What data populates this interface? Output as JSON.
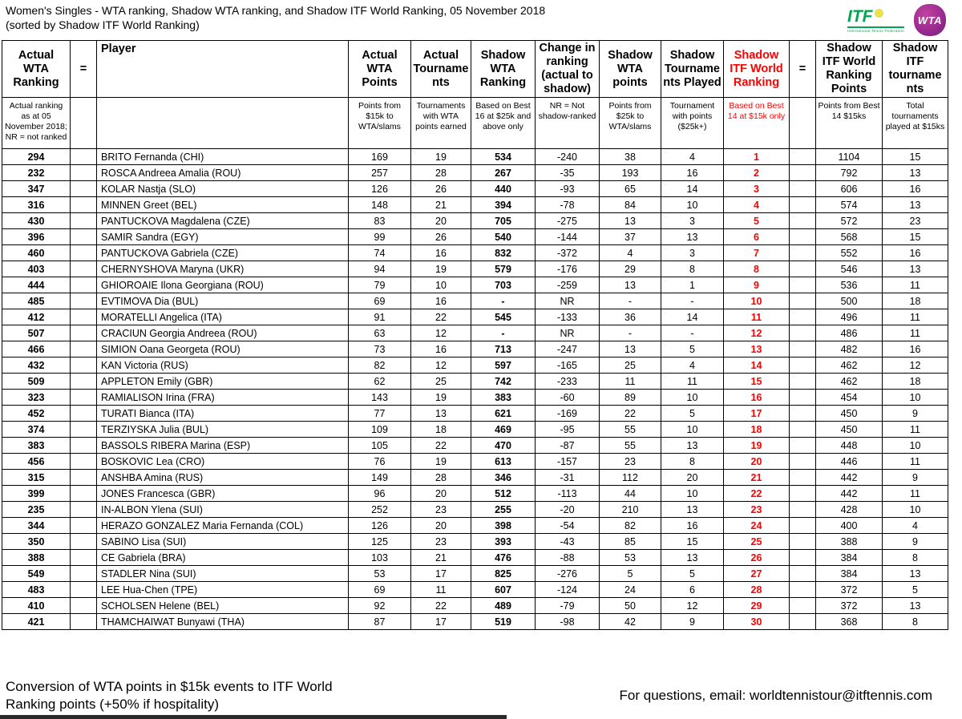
{
  "title": "Women's Singles - WTA ranking, Shadow WTA ranking, and Shadow ITF World Ranking, 05 November 2018",
  "subtitle": "(sorted by Shadow ITF World Ranking)",
  "logos": {
    "itf_label": "ITF",
    "itf_tagline": "International Tennis Federation",
    "wta_label": "WTA",
    "itf_green": "#00a651",
    "wta_purple": "#9c2b92"
  },
  "colors": {
    "accent_red": "#ff0000",
    "border": "#000000",
    "background": "#ffffff"
  },
  "columns": [
    {
      "key": "actual-wta-ranking",
      "label": "Actual\nWTA\nRanking",
      "sub": "Actual ranking as at 05 November 2018; NR = not ranked",
      "red": false,
      "bold_values": true
    },
    {
      "key": "equals-1",
      "label": "=",
      "sub": "",
      "red": false,
      "bold_values": false
    },
    {
      "key": "player",
      "label": "Player",
      "sub": "",
      "red": false,
      "bold_values": false
    },
    {
      "key": "actual-wta-points",
      "label": "Actual\nWTA\nPoints",
      "sub": "Points from $15k to WTA/slams",
      "red": false,
      "bold_values": false
    },
    {
      "key": "actual-tournaments",
      "label": "Actual\nTourname\nnts",
      "sub": "Tournaments with WTA points earned",
      "red": false,
      "bold_values": false
    },
    {
      "key": "shadow-wta-ranking",
      "label": "Shadow\nWTA\nRanking",
      "sub": "Based on Best 16 at $25k and above only",
      "red": false,
      "bold_values": true
    },
    {
      "key": "change-in-ranking",
      "label": "Change in\nranking\n(actual to\nshadow)",
      "sub": "NR = Not shadow-ranked",
      "red": false,
      "bold_values": false
    },
    {
      "key": "shadow-wta-points",
      "label": "Shadow\nWTA\npoints",
      "sub": "Points from $25k to WTA/slams",
      "red": false,
      "bold_values": false
    },
    {
      "key": "shadow-tournaments-played",
      "label": "Shadow\nTourname\nnts Played",
      "sub": "Tournament with points ($25k+)",
      "red": false,
      "bold_values": false
    },
    {
      "key": "shadow-itf-world-ranking",
      "label": "Shadow\nITF World\nRanking",
      "sub": "Based on Best 14 at $15k only",
      "red": true,
      "bold_values": true
    },
    {
      "key": "equals-2",
      "label": "=",
      "sub": "",
      "red": false,
      "bold_values": false
    },
    {
      "key": "shadow-itf-world-ranking-points",
      "label": "Shadow\nITF World\nRanking\nPoints",
      "sub": "Points from Best 14 $15ks",
      "red": false,
      "bold_values": false
    },
    {
      "key": "shadow-itf-tournaments",
      "label": "Shadow\nITF\ntourname\nnts",
      "sub": "Total tournaments played at $15ks",
      "red": false,
      "bold_values": false
    }
  ],
  "rows": [
    [
      "294",
      "",
      "BRITO Fernanda (CHI)",
      "169",
      "19",
      "534",
      "-240",
      "38",
      "4",
      "1",
      "",
      "1104",
      "15"
    ],
    [
      "232",
      "",
      "ROSCA Andreea Amalia (ROU)",
      "257",
      "28",
      "267",
      "-35",
      "193",
      "16",
      "2",
      "",
      "792",
      "13"
    ],
    [
      "347",
      "",
      "KOLAR Nastja (SLO)",
      "126",
      "26",
      "440",
      "-93",
      "65",
      "14",
      "3",
      "",
      "606",
      "16"
    ],
    [
      "316",
      "",
      "MINNEN Greet (BEL)",
      "148",
      "21",
      "394",
      "-78",
      "84",
      "10",
      "4",
      "",
      "574",
      "13"
    ],
    [
      "430",
      "",
      "PANTUCKOVA Magdalena (CZE)",
      "83",
      "20",
      "705",
      "-275",
      "13",
      "3",
      "5",
      "",
      "572",
      "23"
    ],
    [
      "396",
      "",
      "SAMIR Sandra (EGY)",
      "99",
      "26",
      "540",
      "-144",
      "37",
      "13",
      "6",
      "",
      "568",
      "15"
    ],
    [
      "460",
      "",
      "PANTUCKOVA Gabriela (CZE)",
      "74",
      "16",
      "832",
      "-372",
      "4",
      "3",
      "7",
      "",
      "552",
      "16"
    ],
    [
      "403",
      "",
      "CHERNYSHOVA Maryna (UKR)",
      "94",
      "19",
      "579",
      "-176",
      "29",
      "8",
      "8",
      "",
      "546",
      "13"
    ],
    [
      "444",
      "",
      "GHIOROAIE Ilona Georgiana (ROU)",
      "79",
      "10",
      "703",
      "-259",
      "13",
      "1",
      "9",
      "",
      "536",
      "11"
    ],
    [
      "485",
      "",
      "EVTIMOVA Dia (BUL)",
      "69",
      "16",
      "-",
      "NR",
      "-",
      "-",
      "10",
      "",
      "500",
      "18"
    ],
    [
      "412",
      "",
      "MORATELLI Angelica (ITA)",
      "91",
      "22",
      "545",
      "-133",
      "36",
      "14",
      "11",
      "",
      "496",
      "11"
    ],
    [
      "507",
      "",
      "CRACIUN Georgia Andreea (ROU)",
      "63",
      "12",
      "-",
      "NR",
      "-",
      "-",
      "12",
      "",
      "486",
      "11"
    ],
    [
      "466",
      "",
      "SIMION Oana Georgeta (ROU)",
      "73",
      "16",
      "713",
      "-247",
      "13",
      "5",
      "13",
      "",
      "482",
      "16"
    ],
    [
      "432",
      "",
      "KAN Victoria (RUS)",
      "82",
      "12",
      "597",
      "-165",
      "25",
      "4",
      "14",
      "",
      "462",
      "12"
    ],
    [
      "509",
      "",
      "APPLETON Emily (GBR)",
      "62",
      "25",
      "742",
      "-233",
      "11",
      "11",
      "15",
      "",
      "462",
      "18"
    ],
    [
      "323",
      "",
      "RAMIALISON Irina (FRA)",
      "143",
      "19",
      "383",
      "-60",
      "89",
      "10",
      "16",
      "",
      "454",
      "10"
    ],
    [
      "452",
      "",
      "TURATI Bianca (ITA)",
      "77",
      "13",
      "621",
      "-169",
      "22",
      "5",
      "17",
      "",
      "450",
      "9"
    ],
    [
      "374",
      "",
      "TERZIYSKA Julia (BUL)",
      "109",
      "18",
      "469",
      "-95",
      "55",
      "10",
      "18",
      "",
      "450",
      "11"
    ],
    [
      "383",
      "",
      "BASSOLS RIBERA Marina (ESP)",
      "105",
      "22",
      "470",
      "-87",
      "55",
      "13",
      "19",
      "",
      "448",
      "10"
    ],
    [
      "456",
      "",
      "BOSKOVIC Lea (CRO)",
      "76",
      "19",
      "613",
      "-157",
      "23",
      "8",
      "20",
      "",
      "446",
      "11"
    ],
    [
      "315",
      "",
      "ANSHBA Amina (RUS)",
      "149",
      "28",
      "346",
      "-31",
      "112",
      "20",
      "21",
      "",
      "442",
      "9"
    ],
    [
      "399",
      "",
      "JONES Francesca (GBR)",
      "96",
      "20",
      "512",
      "-113",
      "44",
      "10",
      "22",
      "",
      "442",
      "11"
    ],
    [
      "235",
      "",
      "IN-ALBON Ylena (SUI)",
      "252",
      "23",
      "255",
      "-20",
      "210",
      "13",
      "23",
      "",
      "428",
      "10"
    ],
    [
      "344",
      "",
      "HERAZO GONZALEZ Maria Fernanda (COL)",
      "126",
      "20",
      "398",
      "-54",
      "82",
      "16",
      "24",
      "",
      "400",
      "4"
    ],
    [
      "350",
      "",
      "SABINO Lisa (SUI)",
      "125",
      "23",
      "393",
      "-43",
      "85",
      "15",
      "25",
      "",
      "388",
      "9"
    ],
    [
      "388",
      "",
      "CE Gabriela (BRA)",
      "103",
      "21",
      "476",
      "-88",
      "53",
      "13",
      "26",
      "",
      "384",
      "8"
    ],
    [
      "549",
      "",
      "STADLER Nina (SUI)",
      "53",
      "17",
      "825",
      "-276",
      "5",
      "5",
      "27",
      "",
      "384",
      "13"
    ],
    [
      "483",
      "",
      "LEE Hua-Chen (TPE)",
      "69",
      "11",
      "607",
      "-124",
      "24",
      "6",
      "28",
      "",
      "372",
      "5"
    ],
    [
      "410",
      "",
      "SCHOLSEN Helene (BEL)",
      "92",
      "22",
      "489",
      "-79",
      "50",
      "12",
      "29",
      "",
      "372",
      "13"
    ],
    [
      "421",
      "",
      "THAMCHAIWAT Bunyawi (THA)",
      "87",
      "17",
      "519",
      "-98",
      "42",
      "9",
      "30",
      "",
      "368",
      "8"
    ]
  ],
  "footer": {
    "left": "Conversion of WTA points in $15k events to ITF World Ranking points (+50% if hospitality)",
    "right": "For questions, email: worldtennistour@itftennis.com"
  }
}
